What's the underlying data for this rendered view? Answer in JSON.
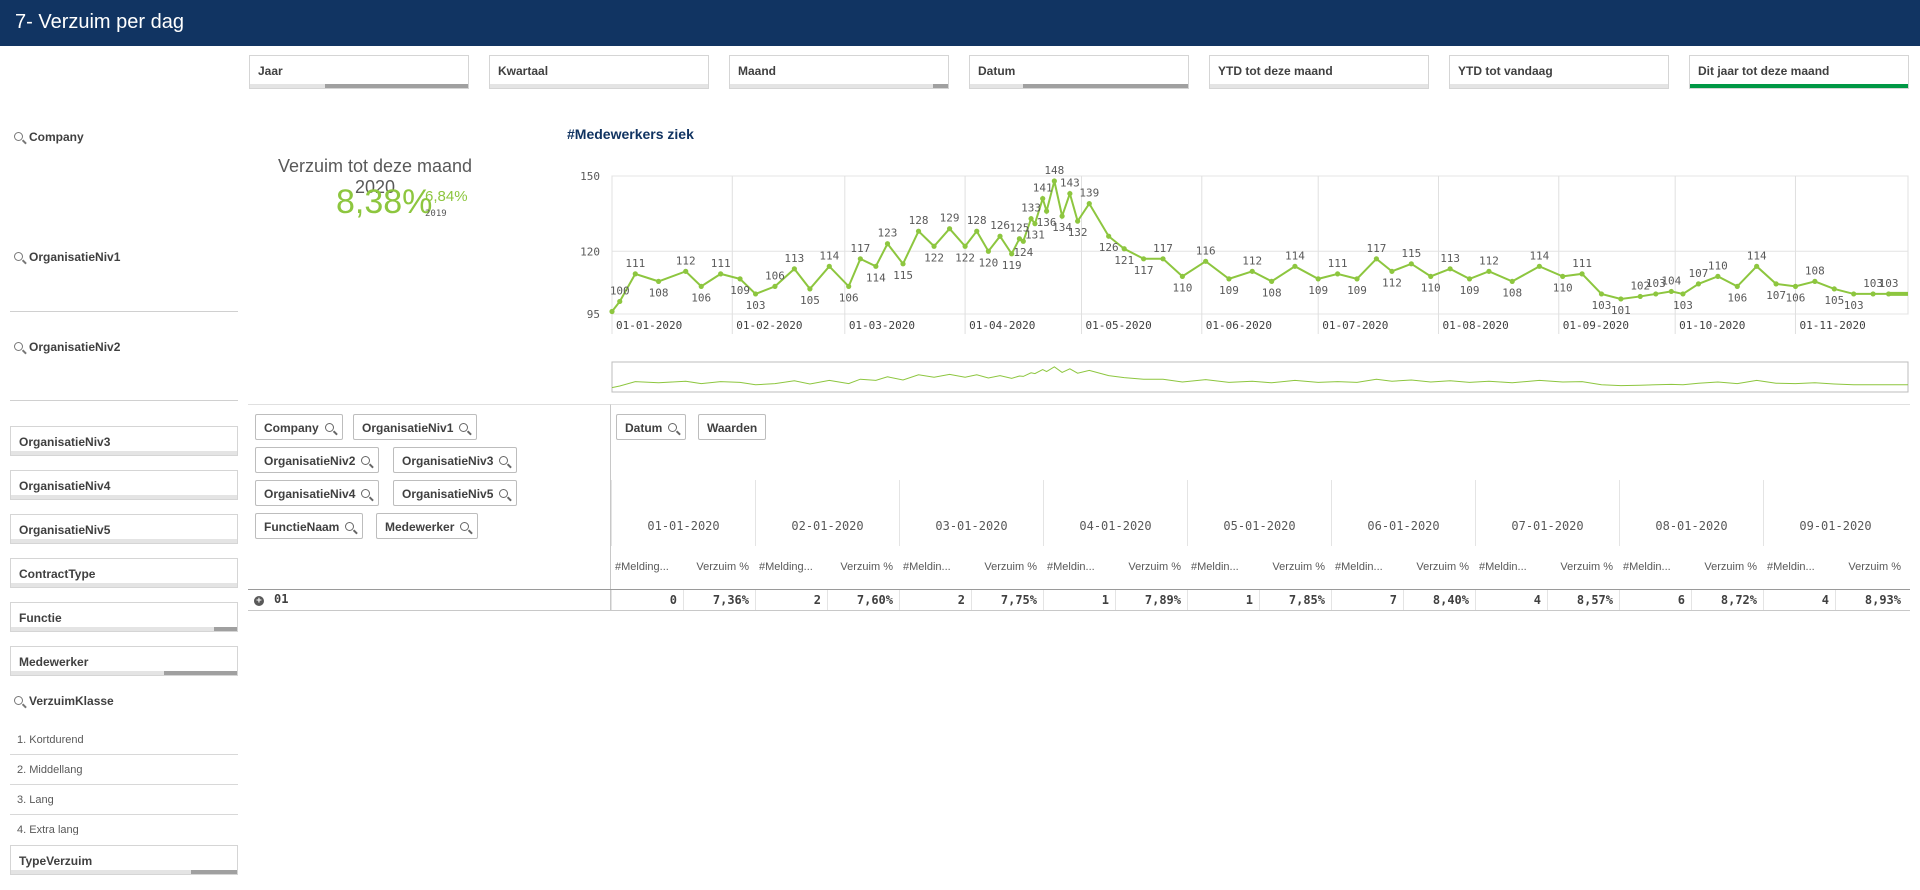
{
  "app": {
    "sheet_title": "7- Verzuim per dag"
  },
  "top_filters": [
    {
      "label": "Jaar",
      "fill": 0.65,
      "active": false
    },
    {
      "label": "Kwartaal",
      "fill": 0.0,
      "active": false
    },
    {
      "label": "Maand",
      "fill": 0.07,
      "active": false
    },
    {
      "label": "Datum",
      "fill": 0.75,
      "active": false
    },
    {
      "label": "YTD tot deze maand",
      "fill": 0.0,
      "active": false
    },
    {
      "label": "YTD tot vandaag",
      "fill": 0.0,
      "active": false
    },
    {
      "label": "Dit jaar tot deze maand",
      "fill": 1.0,
      "active": true
    }
  ],
  "left_filters": {
    "company": "Company",
    "org1": "OrganisatieNiv1",
    "org2": "OrganisatieNiv2",
    "boxes": [
      {
        "label": "OrganisatieNiv3",
        "fill": 0.0
      },
      {
        "label": "OrganisatieNiv4",
        "fill": 0.0
      },
      {
        "label": "OrganisatieNiv5",
        "fill": 0.0
      },
      {
        "label": "ContractType",
        "fill": 0.0
      },
      {
        "label": "Functie",
        "fill": 0.1
      },
      {
        "label": "Medewerker",
        "fill": 0.32
      }
    ],
    "verzuimklasse": {
      "label": "VerzuimKlasse",
      "items": [
        "1. Kortdurend",
        "2. Middellang",
        "3. Lang",
        "4. Extra lang"
      ]
    },
    "typeverzuim": {
      "label": "TypeVerzuim",
      "fill": 0.2
    }
  },
  "kpi": {
    "title": "Verzuim tot deze maand 2020",
    "value": "8,38%",
    "compare_value": "6,84%",
    "compare_year": "2019"
  },
  "chart_data": {
    "type": "line",
    "title": "#Medewerkers ziek",
    "color": "#8dc63f",
    "y_ticks": [
      "150",
      "120",
      "95"
    ],
    "ylim": [
      95,
      150
    ],
    "x_tick_labels": [
      "01-01-2020",
      "01-02-2020",
      "01-03-2020",
      "01-04-2020",
      "01-05-2020",
      "01-06-2020",
      "01-07-2020",
      "01-08-2020",
      "01-09-2020",
      "01-10-2020",
      "01-11-2020"
    ],
    "series": [
      {
        "x": [
          "01-01-2020",
          "03-01-2020",
          "07-01-2020",
          "13-01-2020",
          "20-01-2020",
          "24-01-2020",
          "29-01-2020",
          "03-02-2020",
          "07-02-2020",
          "12-02-2020",
          "17-02-2020",
          "21-02-2020",
          "26-02-2020",
          "02-03-2020",
          "05-03-2020",
          "09-03-2020",
          "12-03-2020",
          "16-03-2020",
          "20-03-2020",
          "24-03-2020",
          "28-03-2020",
          "01-04-2020",
          "04-04-2020",
          "07-04-2020",
          "10-04-2020",
          "13-04-2020",
          "15-04-2020",
          "16-04-2020",
          "18-04-2020",
          "19-04-2020",
          "21-04-2020",
          "22-04-2020",
          "24-04-2020",
          "26-04-2020",
          "28-04-2020",
          "30-04-2020",
          "03-05-2020",
          "08-05-2020",
          "12-05-2020",
          "17-05-2020",
          "22-05-2020",
          "27-05-2020",
          "02-06-2020",
          "08-06-2020",
          "14-06-2020",
          "19-06-2020",
          "25-06-2020",
          "01-07-2020",
          "06-07-2020",
          "11-07-2020",
          "16-07-2020",
          "20-07-2020",
          "25-07-2020",
          "30-07-2020",
          "04-08-2020",
          "09-08-2020",
          "14-08-2020",
          "20-08-2020",
          "27-08-2020",
          "02-09-2020",
          "07-09-2020",
          "12-09-2020",
          "17-09-2020",
          "22-09-2020",
          "26-09-2020",
          "30-09-2020",
          "03-10-2020",
          "07-10-2020",
          "12-10-2020",
          "17-10-2020",
          "22-10-2020",
          "27-10-2020",
          "01-11-2020",
          "06-11-2020",
          "11-11-2020",
          "16-11-2020",
          "21-11-2020",
          "25-11-2020"
        ],
        "values": [
          96,
          100,
          111,
          108,
          112,
          106,
          111,
          109,
          103,
          106,
          113,
          105,
          114,
          106,
          117,
          114,
          123,
          115,
          128,
          122,
          129,
          122,
          128,
          120,
          126,
          119,
          125,
          124,
          133,
          131,
          141,
          136,
          148,
          134,
          143,
          132,
          139,
          126,
          121,
          117,
          117,
          110,
          116,
          109,
          112,
          108,
          114,
          109,
          111,
          109,
          117,
          112,
          115,
          110,
          113,
          109,
          112,
          108,
          114,
          110,
          111,
          103,
          101,
          102,
          103,
          104,
          103,
          107,
          110,
          106,
          114,
          107,
          106,
          108,
          105,
          103,
          103,
          103
        ],
        "labels": [
          null,
          "100",
          "111",
          "108",
          "112",
          "106",
          "111",
          "109",
          "103",
          "106",
          "113",
          "105",
          "114",
          "106",
          "117",
          "114",
          "123",
          "115",
          "128",
          "122",
          "129",
          "122",
          "128",
          "120",
          "126",
          "119",
          "125",
          "124",
          "133",
          "131",
          "141",
          "136",
          "148",
          "134",
          "143",
          "132",
          "139",
          "126",
          "121",
          "117",
          "117",
          "110",
          "116",
          "109",
          "112",
          "108",
          "114",
          "109",
          "111",
          "109",
          "117",
          "112",
          "115",
          "110",
          "113",
          "109",
          "112",
          "108",
          "114",
          "110",
          "111",
          "103",
          "101",
          "102",
          "103",
          "104",
          "103",
          "107",
          "110",
          "106",
          "114",
          "107",
          "106",
          "108",
          "105",
          "103",
          "103",
          "103"
        ]
      }
    ]
  },
  "pivot": {
    "row_dims": [
      "Company",
      "OrganisatieNiv1",
      "OrganisatieNiv2",
      "OrganisatieNiv3",
      "OrganisatieNiv4",
      "OrganisatieNiv5",
      "FunctieNaam",
      "Medewerker"
    ],
    "col_dims": [
      "Datum",
      "Waarden"
    ],
    "dates": [
      "01-01-2020",
      "02-01-2020",
      "03-01-2020",
      "04-01-2020",
      "05-01-2020",
      "06-01-2020",
      "07-01-2020",
      "08-01-2020",
      "09-01-2020"
    ],
    "measure_headers": [
      [
        "#Melding...",
        "Verzuim %"
      ],
      [
        "#Melding...",
        "Verzuim %"
      ],
      [
        "#Meldin...",
        "Verzuim %"
      ],
      [
        "#Meldin...",
        "Verzuim %"
      ],
      [
        "#Meldin...",
        "Verzuim %"
      ],
      [
        "#Meldin...",
        "Verzuim %"
      ],
      [
        "#Meldin...",
        "Verzuim %"
      ],
      [
        "#Meldin...",
        "Verzuim %"
      ],
      [
        "#Meldin...",
        "Verzuim %"
      ]
    ],
    "row": {
      "label": "01",
      "values": [
        [
          "0",
          "7,36%"
        ],
        [
          "2",
          "7,60%"
        ],
        [
          "2",
          "7,75%"
        ],
        [
          "1",
          "7,89%"
        ],
        [
          "1",
          "7,85%"
        ],
        [
          "7",
          "8,40%"
        ],
        [
          "4",
          "8,57%"
        ],
        [
          "6",
          "8,72%"
        ],
        [
          "4",
          "8,93%"
        ]
      ]
    }
  }
}
